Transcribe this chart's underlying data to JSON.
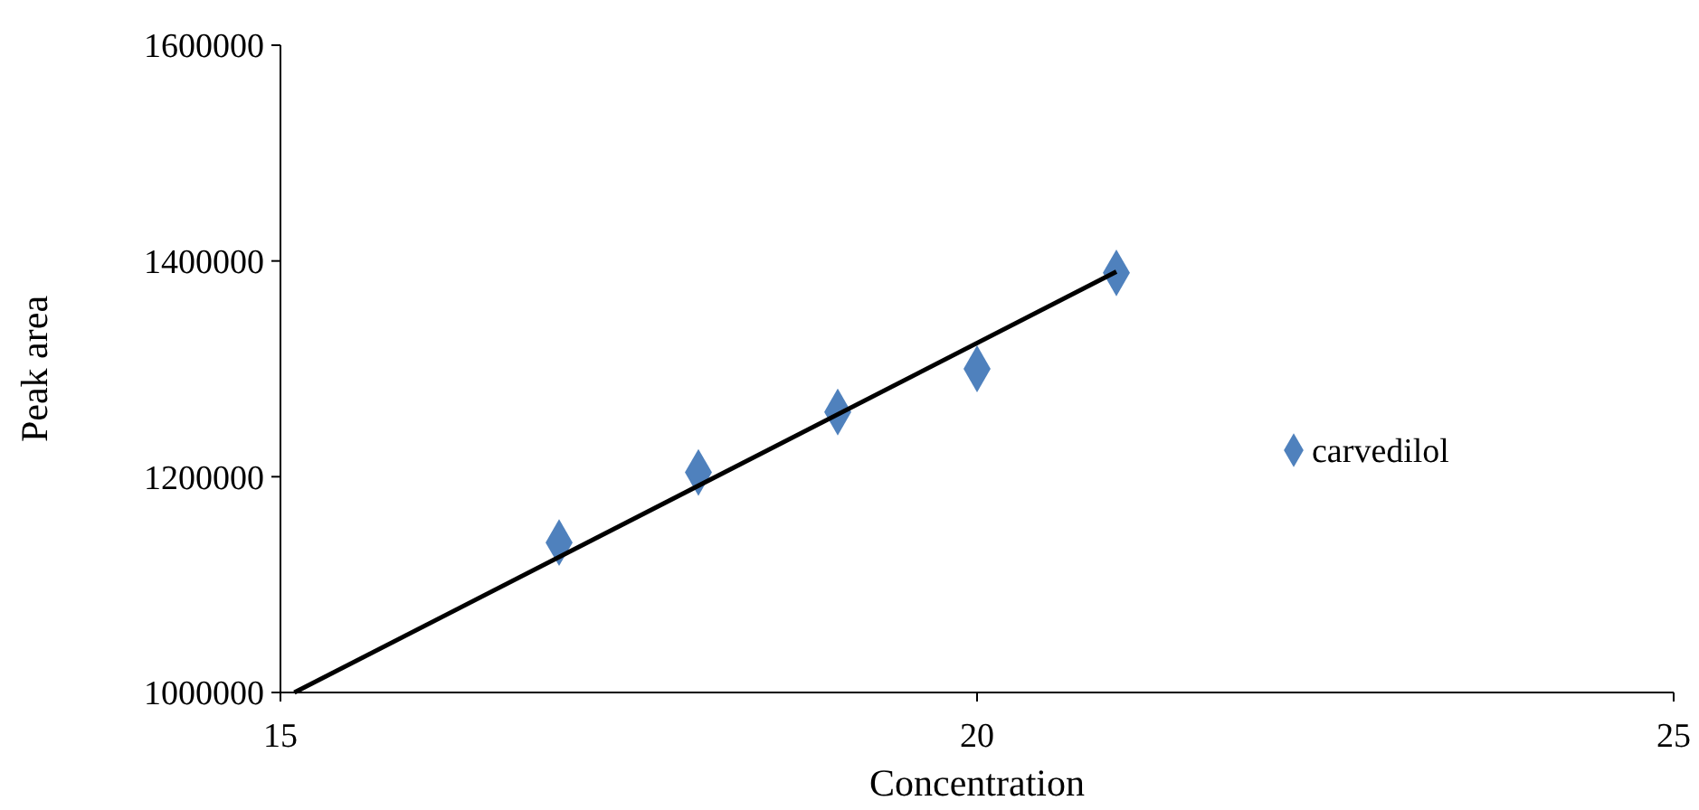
{
  "chart_data": {
    "type": "scatter",
    "xlabel": "Concentration",
    "ylabel": "Peak area",
    "xlim": [
      15,
      25
    ],
    "xticks": [
      15,
      20,
      25
    ],
    "ylim": [
      1000000,
      1600000
    ],
    "yticks": [
      1000000,
      1200000,
      1400000,
      1600000
    ],
    "grid": false,
    "legend": "right",
    "marker": "diamond",
    "series": [
      {
        "name": "carvedilol",
        "color": "#4f81bd",
        "x": [
          17,
          18,
          19,
          20,
          21
        ],
        "values": [
          1139000,
          1204000,
          1260000,
          1300000,
          1389000
        ]
      },
      {
        "type": "line",
        "color": "#000000",
        "x": [
          15.1,
          21
        ],
        "values": [
          1000000,
          1390000
        ],
        "marker": "none",
        "line_style": "solid"
      }
    ]
  }
}
